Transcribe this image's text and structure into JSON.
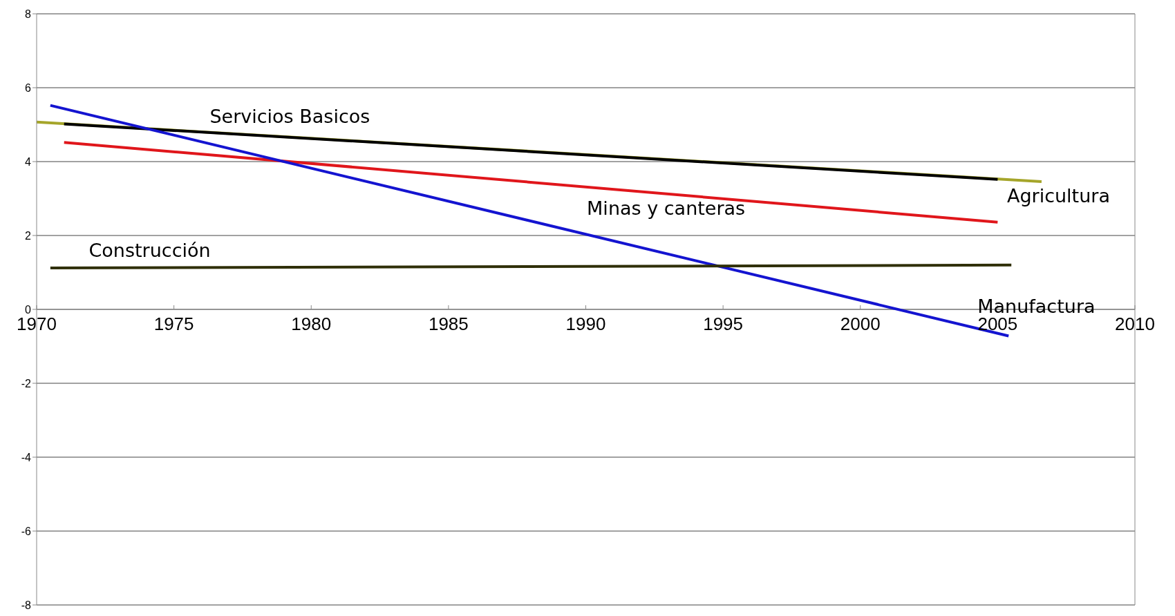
{
  "chart_data": {
    "type": "line",
    "xlim": [
      1970,
      2010
    ],
    "xticks": [
      1970,
      1975,
      1980,
      1985,
      1990,
      1995,
      2000,
      2005,
      2010
    ],
    "ylim": [
      -8,
      8
    ],
    "yticks": [
      -8,
      -6,
      -4,
      -2,
      0,
      2,
      4,
      6,
      8
    ],
    "grid": "y",
    "legend": false,
    "marker": "none",
    "line_style": "solid",
    "series": [
      {
        "name": "Agricultura",
        "color": "#a5a52a",
        "x": [
          1970,
          2006.6
        ],
        "values": [
          5.07,
          3.46
        ]
      },
      {
        "name": "Servicios Basicos",
        "color": "#000000",
        "x": [
          1971,
          2005
        ],
        "values": [
          5.02,
          3.52
        ]
      },
      {
        "name": "Minas y canteras",
        "color": "#e0161b",
        "x": [
          1971,
          2005
        ],
        "values": [
          4.52,
          2.36
        ]
      },
      {
        "name": "Manufactura",
        "color": "#1414d0",
        "x": [
          1970.5,
          2005.4
        ],
        "values": [
          5.52,
          -0.72
        ]
      },
      {
        "name": "Construcción",
        "color": "#2f2f08",
        "x": [
          1970.5,
          2005.5
        ],
        "values": [
          1.12,
          1.2
        ]
      }
    ]
  }
}
